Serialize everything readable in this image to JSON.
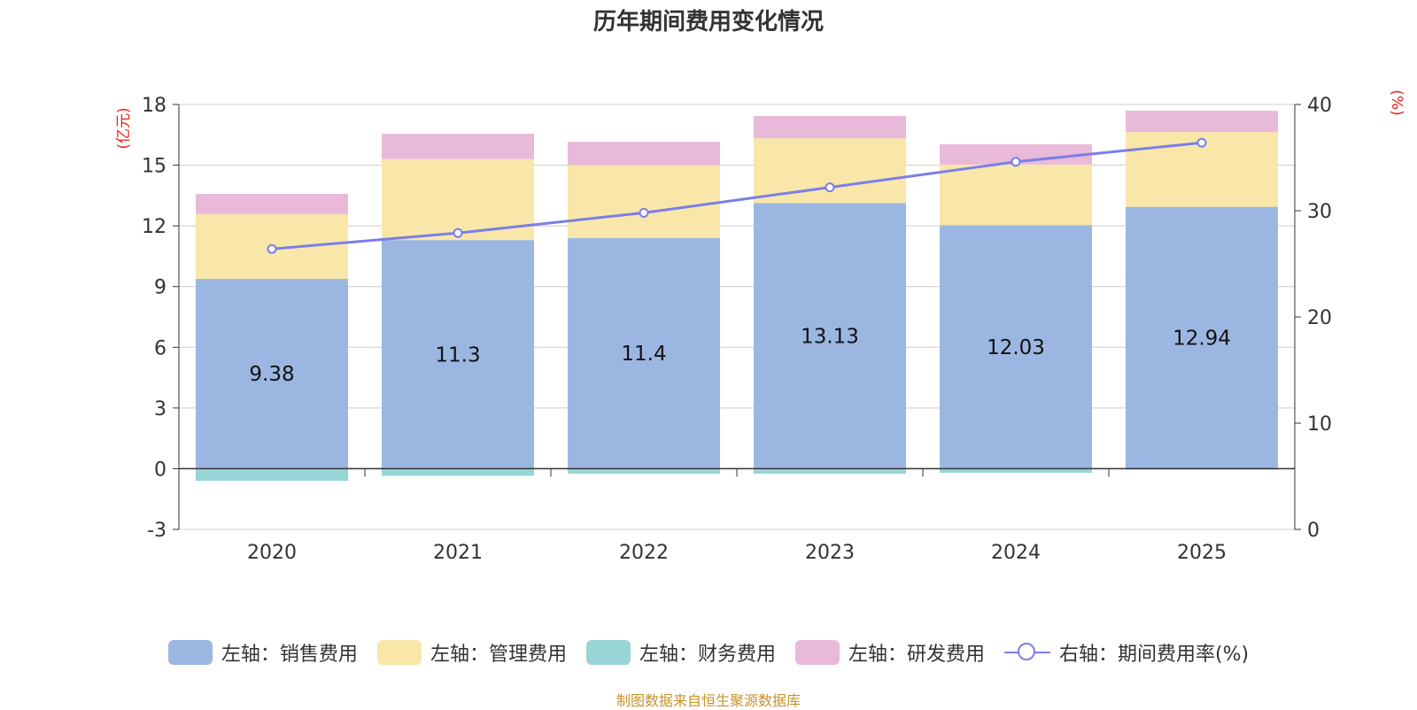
{
  "chart_data": {
    "type": "bar",
    "stacked": true,
    "title": "历年期间费用变化情况",
    "categories": [
      "2020",
      "2021",
      "2022",
      "2023",
      "2024",
      "2025"
    ],
    "series": [
      {
        "name": "左轴：销售费用",
        "axis": "left",
        "kind": "bar",
        "color": "#9bb7e1",
        "values": [
          9.38,
          11.3,
          11.4,
          13.13,
          12.03,
          12.94
        ],
        "data_labels": [
          "9.38",
          "11.3",
          "11.4",
          "13.13",
          "12.03",
          "12.94"
        ]
      },
      {
        "name": "左轴：管理费用",
        "axis": "left",
        "kind": "bar",
        "color": "#f8e7a9",
        "values": [
          3.2,
          4.0,
          3.6,
          3.2,
          3.0,
          3.7
        ]
      },
      {
        "name": "左轴：财务费用",
        "axis": "left",
        "kind": "bar",
        "color": "#98d5d6",
        "values": [
          -0.6,
          -0.35,
          -0.25,
          -0.25,
          -0.2,
          -0.05
        ]
      },
      {
        "name": "左轴：研发费用",
        "axis": "left",
        "kind": "bar",
        "color": "#e9b9d9",
        "values": [
          1.0,
          1.25,
          1.15,
          1.1,
          1.0,
          1.05
        ]
      },
      {
        "name": "右轴：期间费用率(%)",
        "axis": "right",
        "kind": "line",
        "color": "#7b7ee8",
        "values": [
          26.4,
          27.9,
          29.8,
          32.2,
          34.6,
          36.4
        ]
      }
    ],
    "left_axis": {
      "label": "(亿元)",
      "min": -3,
      "max": 18,
      "ticks": [
        -3,
        0,
        3,
        6,
        9,
        12,
        15,
        18
      ]
    },
    "right_axis": {
      "label": "(%)",
      "min": 0,
      "max": 40,
      "ticks": [
        0,
        10,
        20,
        30,
        40
      ]
    },
    "grid": true,
    "legend_position": "bottom"
  },
  "source_text": "制图数据来自恒生聚源数据库"
}
